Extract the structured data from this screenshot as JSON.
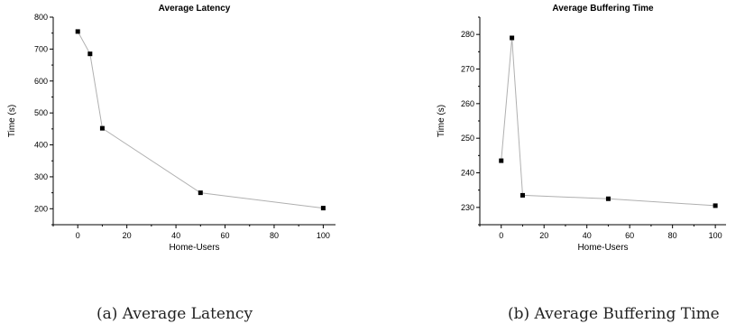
{
  "chart_data": [
    {
      "type": "line",
      "title": "Average Latency",
      "xlabel": "Home-Users",
      "ylabel": "Time (s)",
      "x": [
        0,
        5,
        10,
        50,
        100
      ],
      "series": [
        {
          "values": [
            755,
            685,
            452,
            250,
            202
          ]
        }
      ],
      "xlim": [
        -10,
        105
      ],
      "ylim": [
        150,
        800
      ],
      "xticks": [
        0,
        20,
        40,
        60,
        80,
        100
      ],
      "yticks": [
        200,
        300,
        400,
        500,
        600,
        700,
        800
      ],
      "grid": false,
      "colors": {
        "line": "#b0b0b0",
        "marker": "#000000"
      }
    },
    {
      "type": "line",
      "title": "Average Buffering Time",
      "xlabel": "Home-Users",
      "ylabel": "Time (s)",
      "x": [
        0,
        5,
        10,
        50,
        100
      ],
      "series": [
        {
          "values": [
            243.5,
            279,
            233.5,
            232.5,
            230.5
          ]
        }
      ],
      "xlim": [
        -10,
        105
      ],
      "ylim": [
        225,
        285
      ],
      "xticks": [
        0,
        20,
        40,
        60,
        80,
        100
      ],
      "yticks": [
        230,
        240,
        250,
        260,
        270,
        280
      ],
      "grid": false,
      "colors": {
        "line": "#b0b0b0",
        "marker": "#000000"
      }
    }
  ],
  "captions": {
    "a": "(a) Average Latency",
    "b": "(b) Average Buffering Time"
  }
}
